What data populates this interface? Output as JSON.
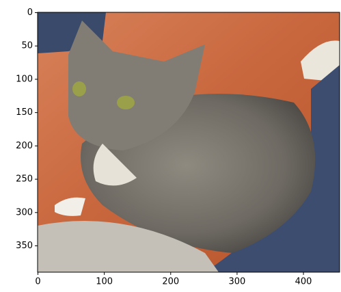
{
  "chart_data": {
    "type": "image",
    "xlim": [
      -0.5,
      454.5
    ],
    "ylim": [
      389.5,
      -0.5
    ],
    "xticks": [
      0,
      100,
      200,
      300,
      400
    ],
    "yticks": [
      0,
      50,
      100,
      150,
      200,
      250,
      300,
      350
    ]
  }
}
